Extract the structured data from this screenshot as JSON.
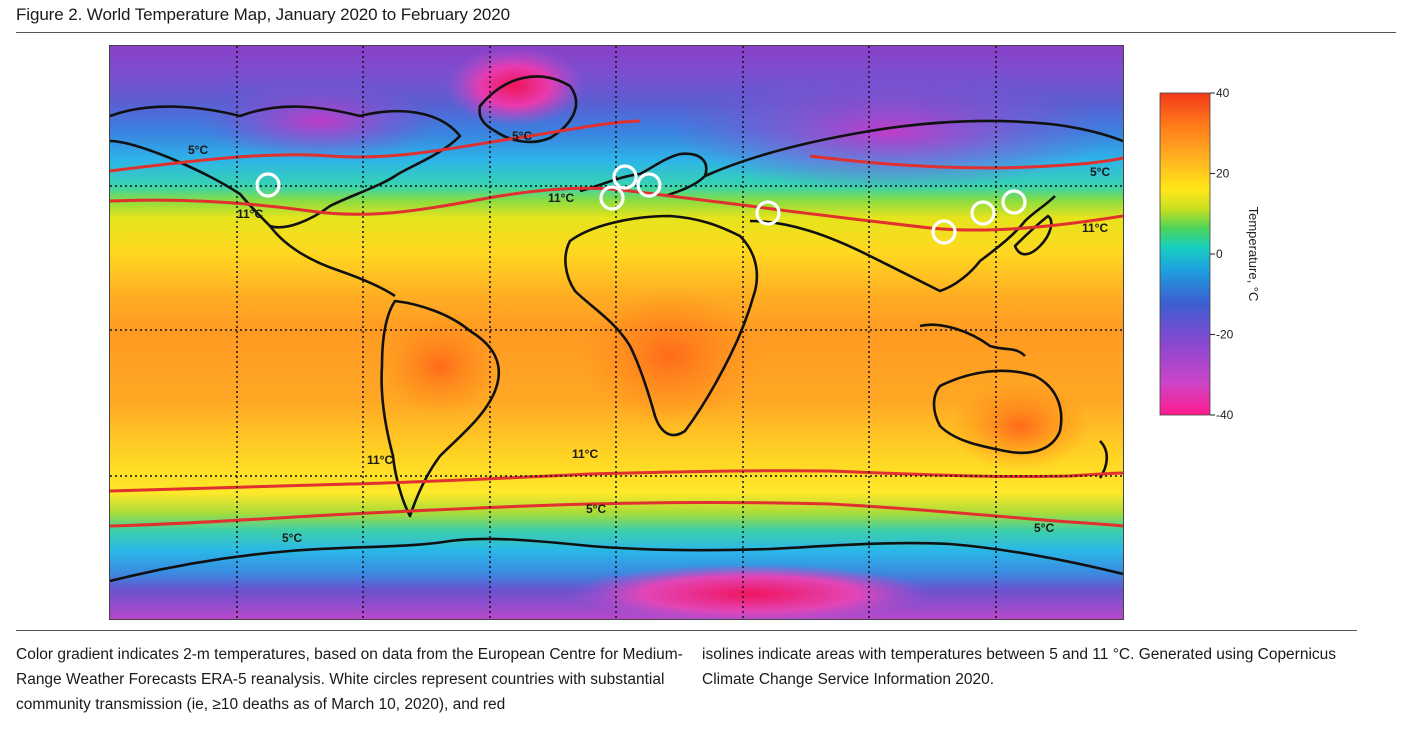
{
  "figure": {
    "title": "Figure 2. World Temperature Map, January 2020 to February 2020"
  },
  "map": {
    "isoline_labels": [
      {
        "text": "5°C"
      },
      {
        "text": "5°C"
      },
      {
        "text": "5°C"
      },
      {
        "text": "11°C"
      },
      {
        "text": "11°C"
      },
      {
        "text": "11°C"
      },
      {
        "text": "11°C"
      },
      {
        "text": "11°C"
      },
      {
        "text": "5°C"
      },
      {
        "text": "5°C"
      },
      {
        "text": "5°C"
      }
    ],
    "circle_count": 8,
    "colors": {
      "isoline": "#e03030",
      "circle": "#ffffff",
      "coast": "#111111"
    }
  },
  "colorbar": {
    "label": "Temperature, °C",
    "ticks": [
      "40",
      "20",
      "0",
      "-20",
      "-40"
    ],
    "range": [
      -40,
      40
    ],
    "colors": [
      "#ff1b8d",
      "#cc44c8",
      "#8a48d0",
      "#3a5fd0",
      "#1ea0e0",
      "#18d0c0",
      "#4cd45a",
      "#c8e020",
      "#ffe818",
      "#ffb020",
      "#ff7a1a",
      "#f23a1a"
    ]
  },
  "caption": {
    "left": "Color gradient indicates 2-m temperatures, based on data from the European Centre for Medium-Range Weather Forecasts ERA-5 reanalysis. White circles represent countries with substantial community transmission (ie, ≥10 deaths as of March 10, 2020), and red",
    "right": "isolines indicate areas with temperatures between 5 and 11 °C. Generated using Copernicus Climate Change Service Information 2020."
  }
}
